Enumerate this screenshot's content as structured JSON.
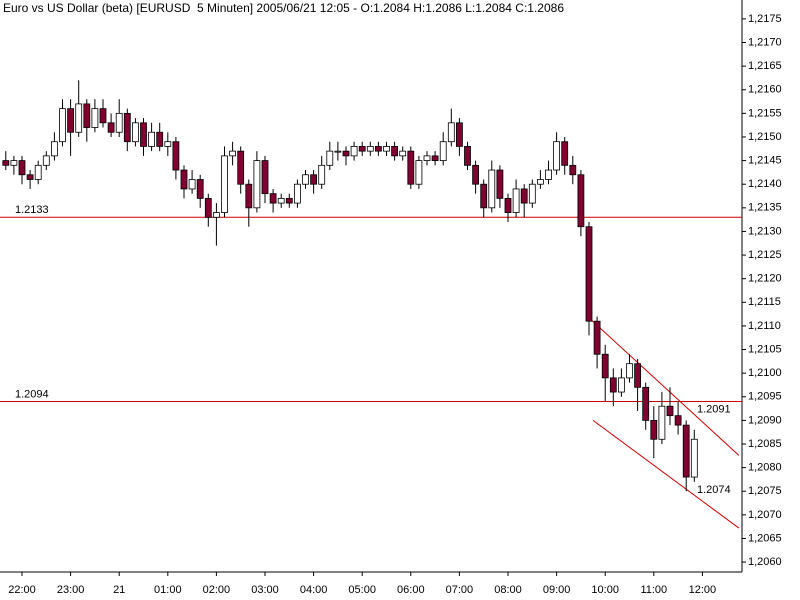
{
  "chart_data": {
    "type": "candlestick",
    "title": "Euro vs US Dollar (beta) [EURUSD  5 Minuten] 2005/06/21 12:05 - O:1.2084 H:1.2086 L:1.2084 C:1.2086",
    "x": [
      "21:40",
      "21:50",
      "22:00",
      "22:10",
      "22:20",
      "22:30",
      "22:40",
      "22:50",
      "23:00",
      "23:10",
      "23:20",
      "23:30",
      "23:40",
      "23:50",
      "00:00",
      "00:10",
      "00:20",
      "00:30",
      "00:40",
      "00:50",
      "01:00",
      "01:10",
      "01:20",
      "01:30",
      "01:40",
      "01:50",
      "02:00",
      "02:10",
      "02:20",
      "02:30",
      "02:40",
      "02:50",
      "03:00",
      "03:10",
      "03:20",
      "03:30",
      "03:40",
      "03:50",
      "04:00",
      "04:10",
      "04:20",
      "04:30",
      "04:40",
      "04:50",
      "05:00",
      "05:10",
      "05:20",
      "05:30",
      "05:40",
      "05:50",
      "06:00",
      "06:10",
      "06:20",
      "06:30",
      "06:40",
      "06:50",
      "07:00",
      "07:10",
      "07:20",
      "07:30",
      "07:40",
      "07:50",
      "08:00",
      "08:10",
      "08:20",
      "08:30",
      "08:40",
      "08:50",
      "09:00",
      "09:10",
      "09:20",
      "09:30",
      "09:40",
      "09:50",
      "10:00",
      "10:10",
      "10:20",
      "10:30",
      "10:40",
      "10:50",
      "11:00",
      "11:10",
      "11:20",
      "11:30",
      "11:40",
      "11:50"
    ],
    "ohlc": [
      [
        1.2145,
        1.2147,
        1.2143,
        1.2144
      ],
      [
        1.2144,
        1.2146,
        1.2142,
        1.2145
      ],
      [
        1.2145,
        1.2146,
        1.214,
        1.2142
      ],
      [
        1.2142,
        1.2143,
        1.2139,
        1.2141
      ],
      [
        1.2141,
        1.2145,
        1.214,
        1.2144
      ],
      [
        1.2144,
        1.2147,
        1.2143,
        1.2146
      ],
      [
        1.2146,
        1.2151,
        1.2145,
        1.2149
      ],
      [
        1.2149,
        1.2158,
        1.2148,
        1.2156
      ],
      [
        1.2156,
        1.2158,
        1.2146,
        1.2151
      ],
      [
        1.2151,
        1.2162,
        1.215,
        1.2157
      ],
      [
        1.2157,
        1.2158,
        1.2149,
        1.2152
      ],
      [
        1.2152,
        1.2158,
        1.2151,
        1.2156
      ],
      [
        1.2156,
        1.2158,
        1.2152,
        1.2153
      ],
      [
        1.2153,
        1.2155,
        1.215,
        1.2151
      ],
      [
        1.2151,
        1.2158,
        1.215,
        1.2155
      ],
      [
        1.2155,
        1.2156,
        1.2147,
        1.2149
      ],
      [
        1.2149,
        1.2154,
        1.2148,
        1.2153
      ],
      [
        1.2153,
        1.2154,
        1.2146,
        1.2148
      ],
      [
        1.2148,
        1.2153,
        1.2147,
        1.2151
      ],
      [
        1.2151,
        1.2153,
        1.2147,
        1.2148
      ],
      [
        1.2148,
        1.2151,
        1.2146,
        1.2149
      ],
      [
        1.2149,
        1.215,
        1.2141,
        1.2143
      ],
      [
        1.2143,
        1.2144,
        1.2137,
        1.2139
      ],
      [
        1.2139,
        1.2143,
        1.2138,
        1.2141
      ],
      [
        1.2141,
        1.2142,
        1.2135,
        1.2137
      ],
      [
        1.2137,
        1.2138,
        1.2131,
        1.2133
      ],
      [
        1.2133,
        1.2136,
        1.2127,
        1.2134
      ],
      [
        1.2134,
        1.2148,
        1.2133,
        1.2146
      ],
      [
        1.2146,
        1.2149,
        1.2144,
        1.2147
      ],
      [
        1.2147,
        1.2148,
        1.2138,
        1.214
      ],
      [
        1.214,
        1.2141,
        1.2131,
        1.2135
      ],
      [
        1.2135,
        1.2147,
        1.2134,
        1.2145
      ],
      [
        1.2145,
        1.2146,
        1.2136,
        1.2138
      ],
      [
        1.2138,
        1.2139,
        1.2134,
        1.2136
      ],
      [
        1.2136,
        1.2138,
        1.2135,
        1.2137
      ],
      [
        1.2137,
        1.2138,
        1.2135,
        1.2136
      ],
      [
        1.2136,
        1.2141,
        1.2135,
        1.214
      ],
      [
        1.214,
        1.2143,
        1.2139,
        1.2142
      ],
      [
        1.2142,
        1.2143,
        1.2138,
        1.214
      ],
      [
        1.214,
        1.2146,
        1.2139,
        1.2144
      ],
      [
        1.2144,
        1.2149,
        1.2143,
        1.2147
      ],
      [
        1.2147,
        1.2149,
        1.2145,
        1.2147
      ],
      [
        1.2147,
        1.2148,
        1.2144,
        1.2146
      ],
      [
        1.2146,
        1.2149,
        1.2145,
        1.2148
      ],
      [
        1.2148,
        1.2149,
        1.2146,
        1.2147
      ],
      [
        1.2147,
        1.2149,
        1.2146,
        1.2148
      ],
      [
        1.2148,
        1.2149,
        1.2146,
        1.2147
      ],
      [
        1.2147,
        1.2149,
        1.2146,
        1.2148
      ],
      [
        1.2148,
        1.2149,
        1.2145,
        1.2146
      ],
      [
        1.2146,
        1.2148,
        1.2145,
        1.2147
      ],
      [
        1.2147,
        1.2148,
        1.2139,
        1.214
      ],
      [
        1.214,
        1.2146,
        1.2139,
        1.2145
      ],
      [
        1.2145,
        1.2147,
        1.2144,
        1.2146
      ],
      [
        1.2146,
        1.2147,
        1.2144,
        1.2145
      ],
      [
        1.2145,
        1.2151,
        1.2144,
        1.2149
      ],
      [
        1.2149,
        1.2156,
        1.2148,
        1.2153
      ],
      [
        1.2153,
        1.2154,
        1.2146,
        1.2148
      ],
      [
        1.2148,
        1.2149,
        1.2143,
        1.2144
      ],
      [
        1.2144,
        1.2145,
        1.2138,
        1.214
      ],
      [
        1.214,
        1.2141,
        1.2133,
        1.2135
      ],
      [
        1.2135,
        1.2145,
        1.2134,
        1.2143
      ],
      [
        1.2143,
        1.2144,
        1.2135,
        1.2137
      ],
      [
        1.2137,
        1.2138,
        1.2132,
        1.2134
      ],
      [
        1.2134,
        1.2141,
        1.2133,
        1.2139
      ],
      [
        1.2139,
        1.214,
        1.2133,
        1.2136
      ],
      [
        1.2136,
        1.2141,
        1.2135,
        1.214
      ],
      [
        1.214,
        1.2143,
        1.2139,
        1.2141
      ],
      [
        1.2141,
        1.2145,
        1.214,
        1.2143
      ],
      [
        1.2143,
        1.2151,
        1.2142,
        1.2149
      ],
      [
        1.2149,
        1.215,
        1.2142,
        1.2144
      ],
      [
        1.2144,
        1.2146,
        1.214,
        1.2142
      ],
      [
        1.2142,
        1.2143,
        1.2129,
        1.2131
      ],
      [
        1.2131,
        1.2132,
        1.2108,
        1.2111
      ],
      [
        1.2111,
        1.2112,
        1.2101,
        1.2104
      ],
      [
        1.2104,
        1.2106,
        1.2094,
        1.2099
      ],
      [
        1.2099,
        1.2101,
        1.2093,
        1.2096
      ],
      [
        1.2096,
        1.2101,
        1.2095,
        1.2099
      ],
      [
        1.2099,
        1.2104,
        1.2098,
        1.2102
      ],
      [
        1.2102,
        1.2103,
        1.2092,
        1.2097
      ],
      [
        1.2097,
        1.2098,
        1.2088,
        1.209
      ],
      [
        1.209,
        1.2093,
        1.2082,
        1.2086
      ],
      [
        1.2086,
        1.2096,
        1.2085,
        1.2093
      ],
      [
        1.2093,
        1.2097,
        1.2089,
        1.2091
      ],
      [
        1.2091,
        1.2094,
        1.2087,
        1.2089
      ],
      [
        1.2089,
        1.209,
        1.2075,
        1.2078
      ],
      [
        1.2078,
        1.2088,
        1.2077,
        1.2086
      ]
    ],
    "up_color": "#ffffff",
    "down_color": "#800030",
    "ylim": [
      1.20579,
      1.2179
    ],
    "yticks": [
      {
        "value": 1.206,
        "label": "1,2060"
      },
      {
        "value": 1.2065,
        "label": "1,2065"
      },
      {
        "value": 1.207,
        "label": "1,2070"
      },
      {
        "value": 1.2075,
        "label": "1,2075"
      },
      {
        "value": 1.208,
        "label": "1,2080"
      },
      {
        "value": 1.2085,
        "label": "1,2085"
      },
      {
        "value": 1.209,
        "label": "1,2090"
      },
      {
        "value": 1.2095,
        "label": "1,2095"
      },
      {
        "value": 1.21,
        "label": "1,2100"
      },
      {
        "value": 1.2105,
        "label": "1,2105"
      },
      {
        "value": 1.211,
        "label": "1,2110"
      },
      {
        "value": 1.2115,
        "label": "1,2115"
      },
      {
        "value": 1.212,
        "label": "1,2120"
      },
      {
        "value": 1.2125,
        "label": "1,2125"
      },
      {
        "value": 1.213,
        "label": "1,2130"
      },
      {
        "value": 1.2135,
        "label": "1,2135"
      },
      {
        "value": 1.214,
        "label": "1,2140"
      },
      {
        "value": 1.2145,
        "label": "1,2145"
      },
      {
        "value": 1.215,
        "label": "1,2150"
      },
      {
        "value": 1.2155,
        "label": "1,2155"
      },
      {
        "value": 1.216,
        "label": "1,2160"
      },
      {
        "value": 1.2165,
        "label": "1,2165"
      },
      {
        "value": 1.217,
        "label": "1,2170"
      },
      {
        "value": 1.2175,
        "label": "1,2175"
      }
    ],
    "xticks": [
      "22:00",
      "23:00",
      {
        "value": "00:00",
        "label": "21"
      },
      "01:00",
      "02:00",
      "03:00",
      "04:00",
      "05:00",
      "06:00",
      "07:00",
      "08:00",
      "09:00",
      "10:00",
      "11:00",
      "12:00"
    ],
    "grid": false,
    "hlines": [
      {
        "value": 1.2133,
        "color": "#cc0000"
      },
      {
        "value": 1.2094,
        "color": "#cc0000"
      }
    ],
    "channel": [
      {
        "x": [
          "09:40",
          "12:45"
        ],
        "y": [
          1.21117,
          1.20826
        ],
        "value": 1.2091,
        "color": "#cc0000"
      },
      {
        "x": [
          "09:45",
          "12:45"
        ],
        "y": [
          1.209,
          1.20672
        ],
        "value": 1.2074,
        "color": "#cc0000"
      }
    ]
  }
}
